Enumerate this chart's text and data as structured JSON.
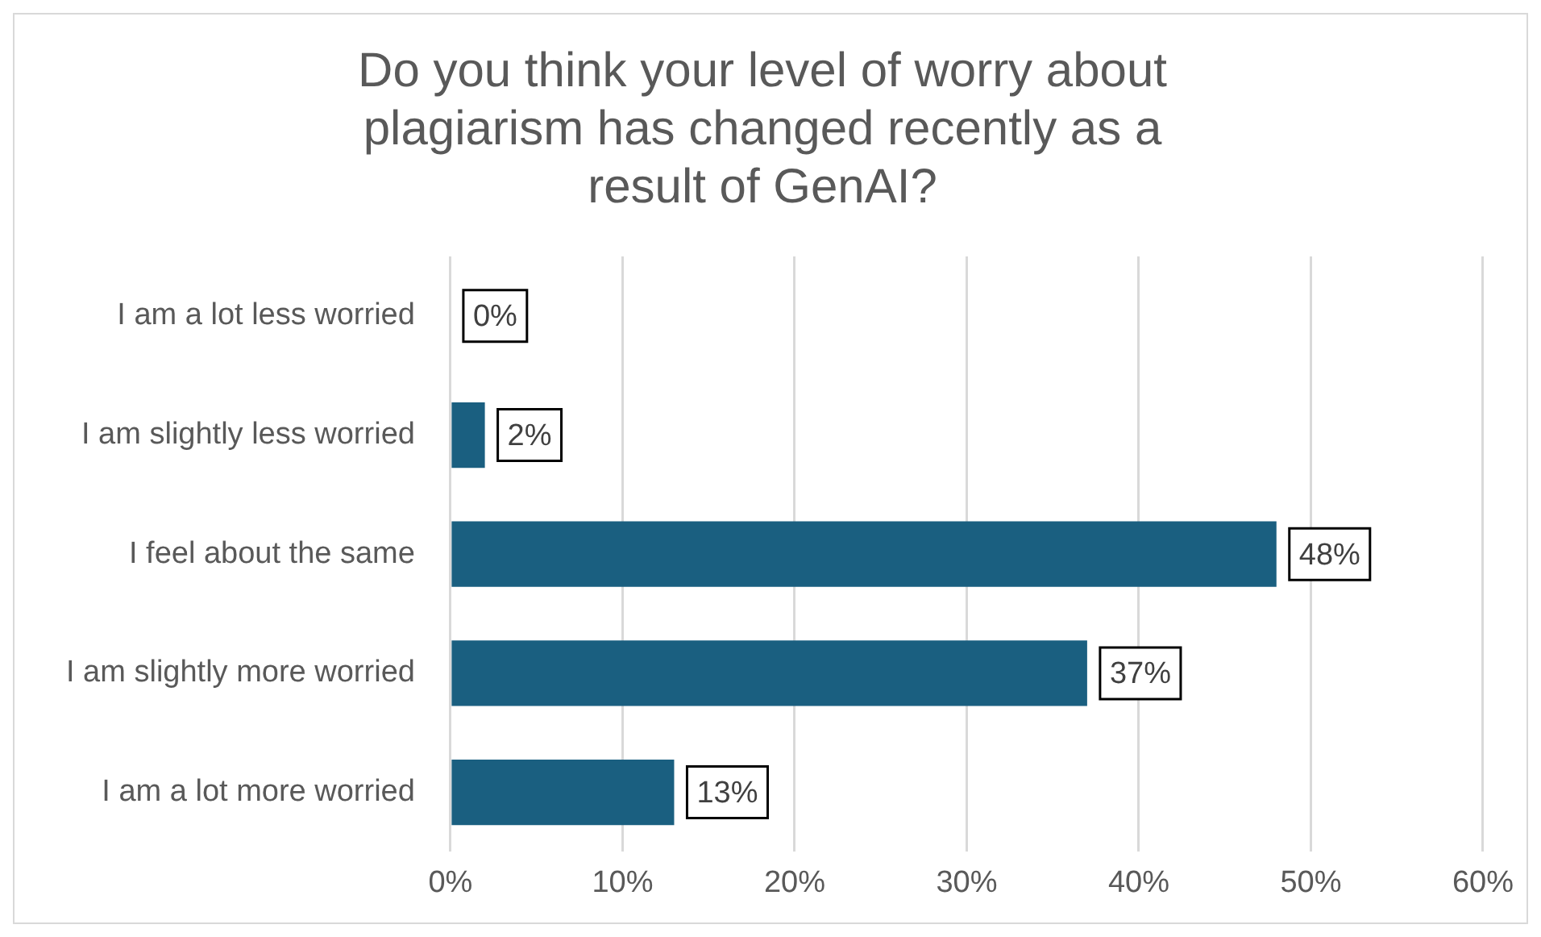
{
  "chart_data": {
    "type": "bar",
    "orientation": "horizontal",
    "title": "Do you think your level of worry about plagiarism has changed recently as a result of GenAI?",
    "categories": [
      "I am a lot less worried",
      "I am slightly less worried",
      "I feel about the same",
      "I am slightly more worried",
      "I am a lot more worried"
    ],
    "values": [
      0,
      2,
      48,
      37,
      13
    ],
    "value_labels": [
      "0%",
      "2%",
      "48%",
      "37%",
      "13%"
    ],
    "color": "#1a5f80",
    "xlim": [
      0,
      60
    ],
    "xticks": [
      {
        "value": 0,
        "label": "0%"
      },
      {
        "value": 10,
        "label": "10%"
      },
      {
        "value": 20,
        "label": "20%"
      },
      {
        "value": 30,
        "label": "30%"
      },
      {
        "value": 40,
        "label": "40%"
      },
      {
        "value": 50,
        "label": "50%"
      },
      {
        "value": 60,
        "label": "60%"
      }
    ],
    "grid": "x",
    "legend": false
  }
}
